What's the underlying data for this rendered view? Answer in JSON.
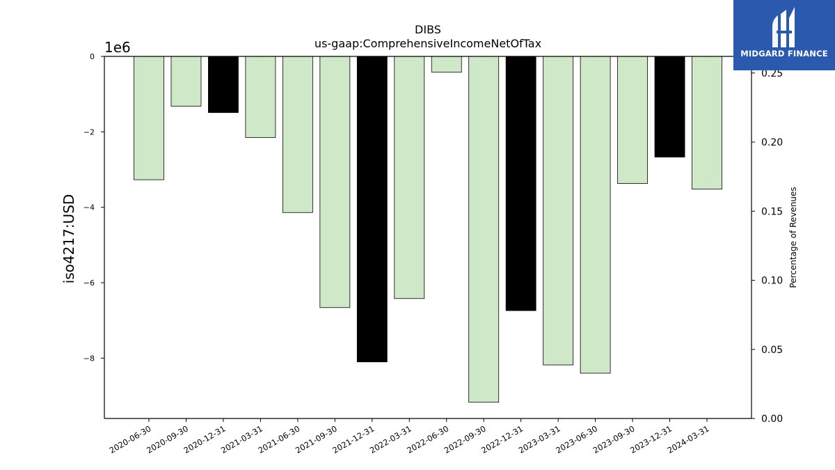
{
  "chart_data": {
    "type": "bar",
    "title": "DIBS",
    "subtitle": "us-gaap:ComprehensiveIncomeNetOfTax",
    "ylabel": "iso4217:USD",
    "y2label": "Percentage of Revenues",
    "offset_text": "1e6",
    "categories": [
      "2020-06-30",
      "2020-09-30",
      "2020-12-31",
      "2021-03-31",
      "2021-06-30",
      "2021-09-30",
      "2021-12-31",
      "2022-03-31",
      "2022-06-30",
      "2022-09-30",
      "2022-12-31",
      "2023-03-31",
      "2023-06-30",
      "2023-09-30",
      "2023-12-31",
      "2024-03-31"
    ],
    "values": [
      -3.27,
      -1.32,
      -1.49,
      -2.15,
      -4.14,
      -6.66,
      -8.1,
      -6.42,
      -0.42,
      -9.17,
      -6.74,
      -8.18,
      -8.4,
      -3.37,
      -2.67,
      -3.52
    ],
    "bar_colors": [
      "#cfe9c8",
      "#cfe9c8",
      "#000000",
      "#cfe9c8",
      "#cfe9c8",
      "#cfe9c8",
      "#000000",
      "#cfe9c8",
      "#cfe9c8",
      "#cfe9c8",
      "#000000",
      "#cfe9c8",
      "#cfe9c8",
      "#cfe9c8",
      "#000000",
      "#cfe9c8"
    ],
    "ylim": [
      -9.6,
      0
    ],
    "yticks": [
      0,
      -2,
      -4,
      -6,
      -8
    ],
    "ytick_labels": [
      "0",
      "−2",
      "−4",
      "−6",
      "−8"
    ],
    "y2lim": [
      0,
      0.262
    ],
    "y2ticks": [
      0.0,
      0.05,
      0.1,
      0.15,
      0.2,
      0.25
    ],
    "y2tick_labels": [
      "0.00",
      "0.05",
      "0.10",
      "0.15",
      "0.20",
      "0.25"
    ],
    "grid": false,
    "legend": "none"
  },
  "logo": {
    "text": "MIDGARD FINANCE",
    "color": "#2b59ad"
  }
}
